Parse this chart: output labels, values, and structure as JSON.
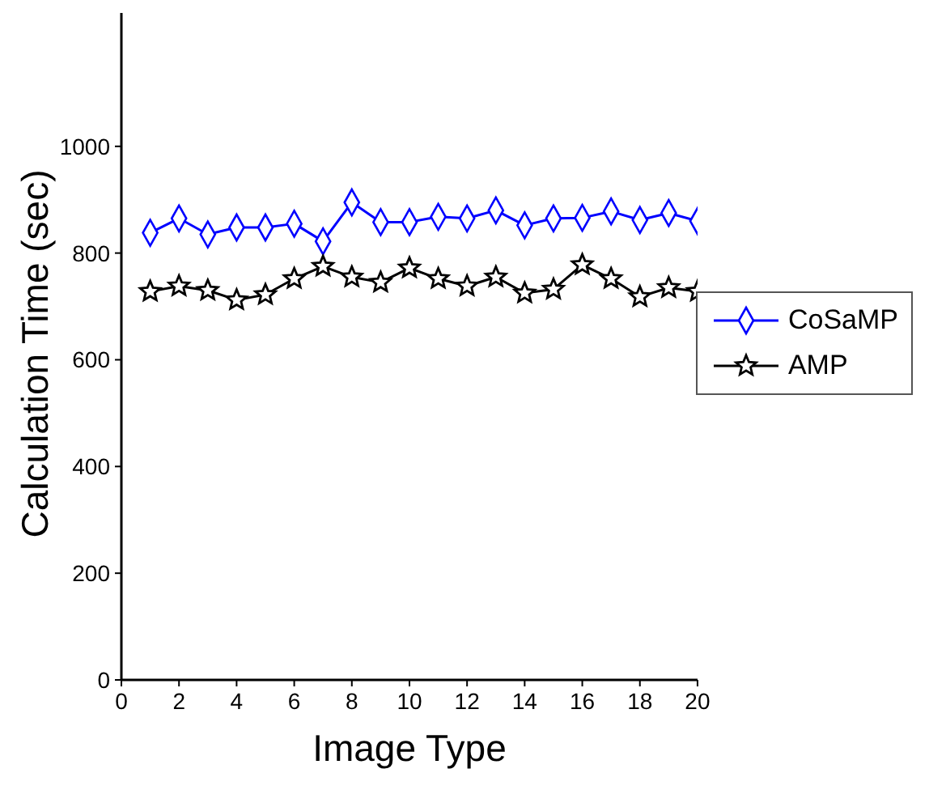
{
  "chart_data": {
    "type": "line",
    "xlabel": "Image Type",
    "ylabel": "Calculation Time (sec)",
    "x": [
      1,
      2,
      3,
      4,
      5,
      6,
      7,
      8,
      9,
      10,
      11,
      12,
      13,
      14,
      15,
      16,
      17,
      18,
      19,
      20
    ],
    "xlim": [
      0,
      20
    ],
    "xticks": [
      0,
      2,
      4,
      6,
      8,
      10,
      12,
      14,
      16,
      18,
      20
    ],
    "ylim": [
      0,
      1250
    ],
    "yticks": [
      0,
      200,
      400,
      600,
      800,
      1000
    ],
    "grid": false,
    "legend": "right",
    "series": [
      {
        "name": "CoSaMP",
        "color": "#0000ff",
        "marker": "diamond",
        "values": [
          838,
          865,
          835,
          848,
          848,
          855,
          822,
          895,
          858,
          858,
          868,
          865,
          880,
          852,
          865,
          866,
          878,
          862,
          875,
          860
        ]
      },
      {
        "name": "AMP",
        "color": "#000000",
        "marker": "star",
        "values": [
          728,
          738,
          730,
          712,
          722,
          752,
          775,
          755,
          745,
          772,
          752,
          738,
          755,
          725,
          732,
          778,
          752,
          718,
          735,
          728
        ]
      }
    ]
  }
}
